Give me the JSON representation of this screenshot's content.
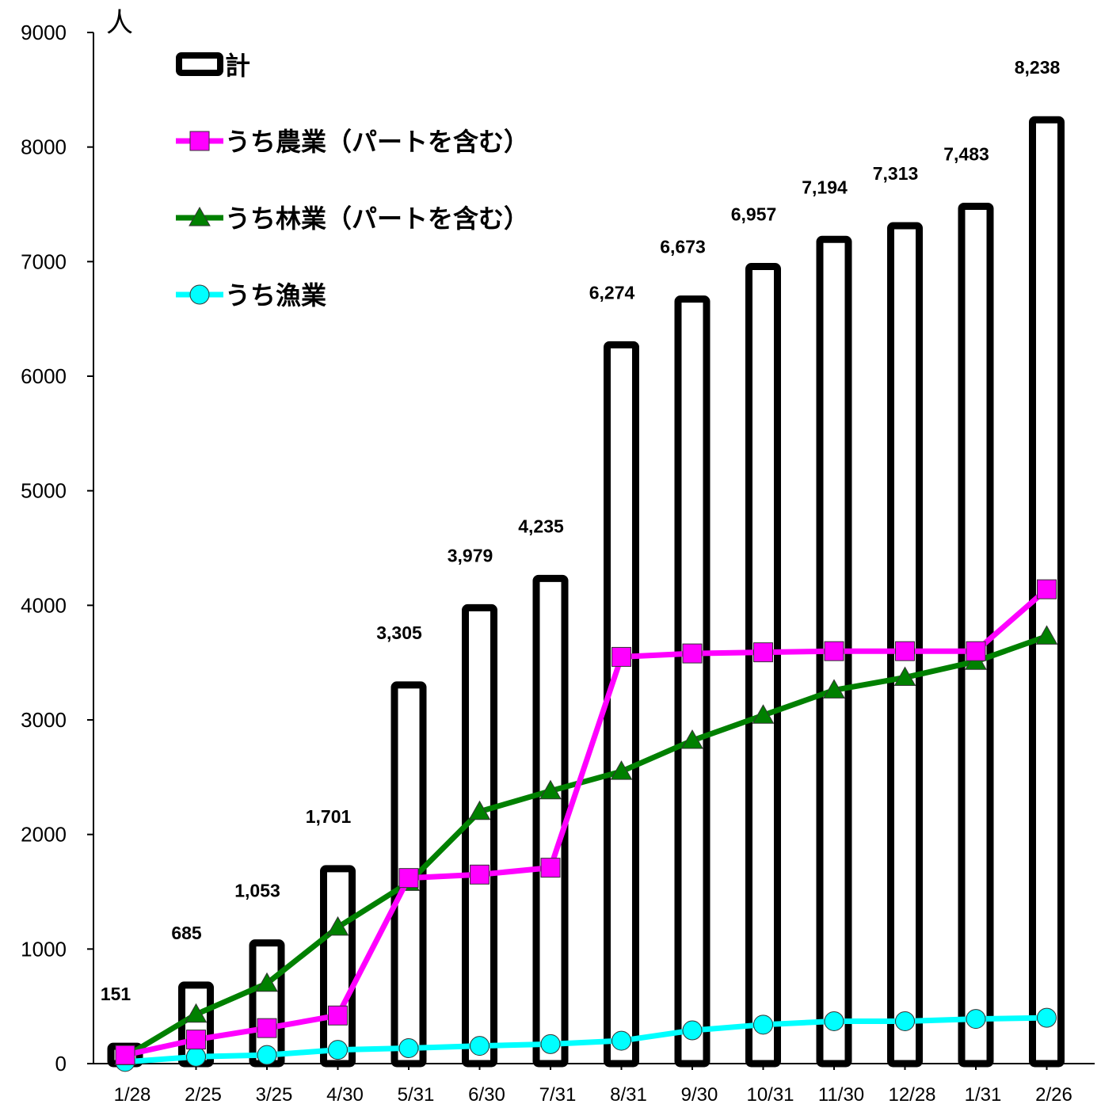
{
  "chart_data": {
    "type": "bar",
    "unit_label": "人",
    "categories": [
      "1/28",
      "2/25",
      "3/25",
      "4/30",
      "5/31",
      "6/30",
      "7/31",
      "8/31",
      "9/30",
      "10/31",
      "11/30",
      "12/28",
      "1/31",
      "2/26"
    ],
    "ylim": [
      0,
      9000
    ],
    "yticks": [
      0,
      1000,
      2000,
      3000,
      4000,
      5000,
      6000,
      7000,
      8000,
      9000
    ],
    "grid": false,
    "legend_position": "top-left",
    "series": [
      {
        "name": "計",
        "type": "bar",
        "values": [
          151,
          685,
          1053,
          1701,
          3305,
          3979,
          4235,
          6274,
          6673,
          6957,
          7194,
          7313,
          7483,
          8238
        ],
        "data_labels": [
          "151",
          "685",
          "1,053",
          "1,701",
          "3,305",
          "3,979",
          "4,235",
          "6,274",
          "6,673",
          "6,957",
          "7,194",
          "7,313",
          "7,483",
          "8,238"
        ],
        "color": "#000000"
      },
      {
        "name": "うち農業（パートを含む）",
        "type": "line",
        "marker": "square",
        "values": [
          75,
          210,
          310,
          420,
          1620,
          1650,
          1710,
          3550,
          3580,
          3590,
          3600,
          3600,
          3600,
          4140
        ],
        "color": "#ff00ff"
      },
      {
        "name": "うち林業（パートを含む）",
        "type": "line",
        "marker": "triangle",
        "values": [
          60,
          430,
          700,
          1190,
          1580,
          2200,
          2380,
          2550,
          2820,
          3040,
          3260,
          3370,
          3510,
          3730
        ],
        "color": "#008000"
      },
      {
        "name": "うち漁業",
        "type": "line",
        "marker": "circle",
        "values": [
          15,
          60,
          75,
          120,
          135,
          155,
          170,
          200,
          290,
          340,
          370,
          370,
          390,
          400
        ],
        "color": "#00ffff"
      }
    ]
  }
}
